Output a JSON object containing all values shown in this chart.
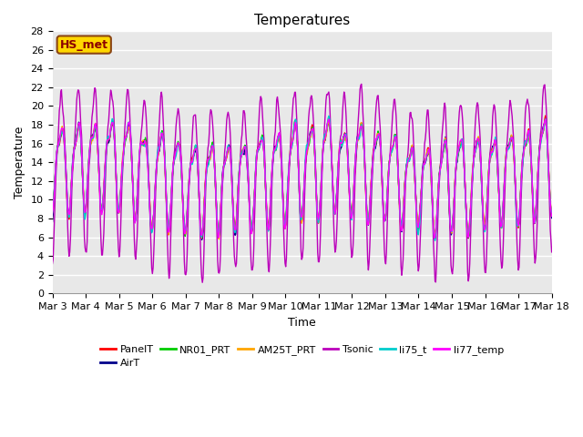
{
  "title": "Temperatures",
  "xlabel": "Time",
  "ylabel": "Temperature",
  "ylim": [
    0,
    28
  ],
  "xlim": [
    0,
    15
  ],
  "annotation_text": "HS_met",
  "annotation_color": "#8B0000",
  "annotation_bg": "#FFD700",
  "annotation_border": "#8B4513",
  "bg_color": "#E8E8E8",
  "grid_color": "white",
  "xtick_labels": [
    "Mar 3",
    "Mar 4",
    "Mar 5",
    "Mar 6",
    "Mar 7",
    "Mar 8",
    "Mar 9",
    "Mar 10",
    "Mar 11",
    "Mar 12",
    "Mar 13",
    "Mar 14",
    "Mar 15",
    "Mar 16",
    "Mar 17",
    "Mar 18"
  ],
  "series_names": [
    "PanelT",
    "AirT",
    "NR01_PRT",
    "AM25T_PRT",
    "Tsonic",
    "li75_t",
    "li77_temp"
  ],
  "series_colors": [
    "#FF0000",
    "#00008B",
    "#00CC00",
    "#FFA500",
    "#BB00BB",
    "#00CCCC",
    "#FF00FF"
  ],
  "line_width": 1.0,
  "n_points": 720,
  "days": 15,
  "seed": 7
}
